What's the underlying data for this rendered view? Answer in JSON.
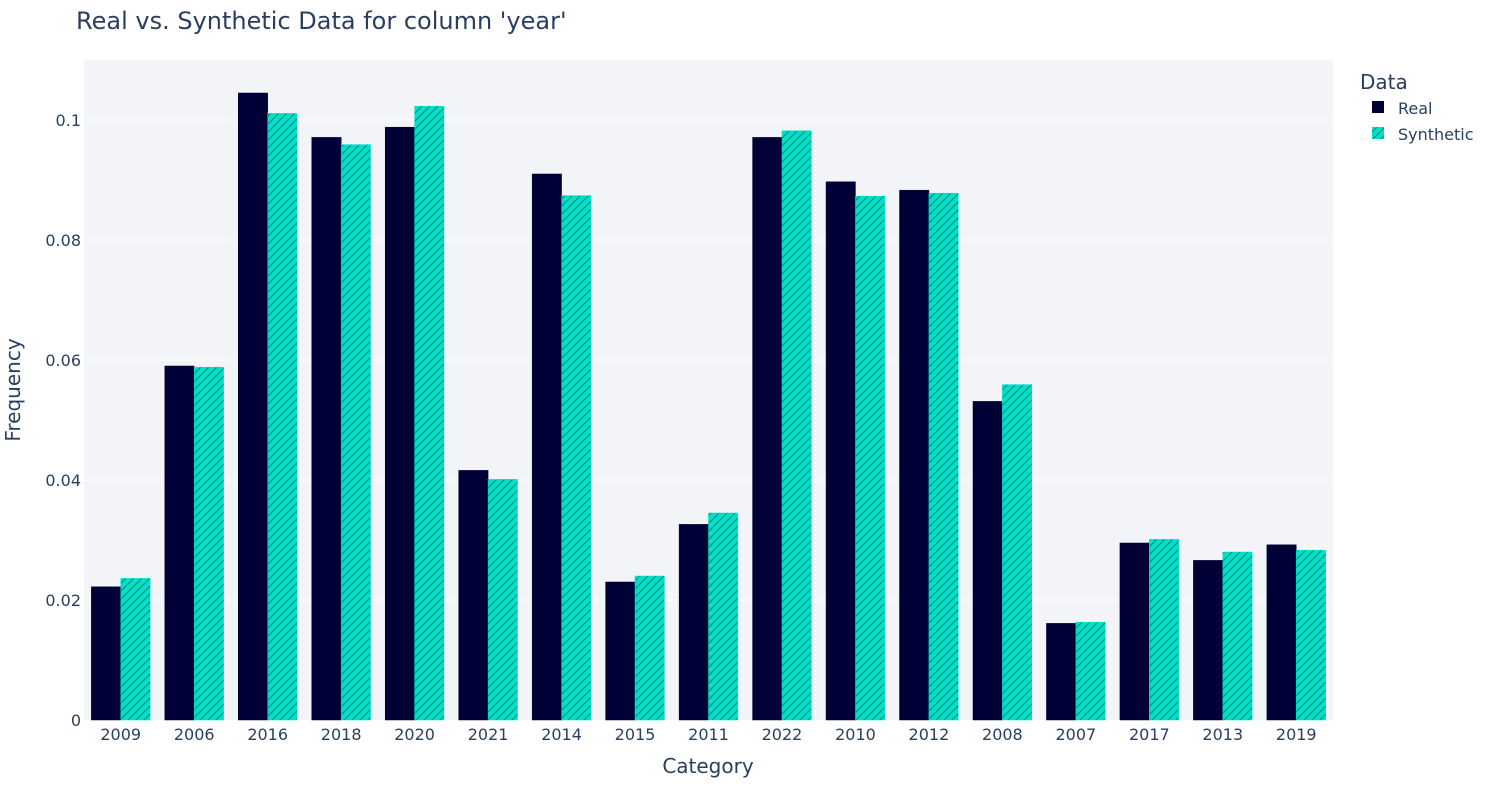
{
  "chart_data": {
    "type": "bar",
    "title": "Real vs. Synthetic Data for column 'year'",
    "xlabel": "Category",
    "ylabel": "Frequency",
    "ylim": [
      0,
      0.11
    ],
    "yticks": [
      0,
      0.02,
      0.04,
      0.06,
      0.08,
      0.1
    ],
    "ytick_labels": [
      "0",
      "0.02",
      "0.04",
      "0.06",
      "0.08",
      "0.1"
    ],
    "grid": true,
    "legend": {
      "title": "Data",
      "placement": "top-right"
    },
    "categories": [
      "2009",
      "2006",
      "2016",
      "2018",
      "2020",
      "2021",
      "2014",
      "2015",
      "2011",
      "2022",
      "2010",
      "2012",
      "2008",
      "2007",
      "2017",
      "2013",
      "2019"
    ],
    "series": [
      {
        "name": "Real",
        "color": "#000036",
        "pattern": "solid",
        "values": [
          0.0222,
          0.059,
          0.1045,
          0.0971,
          0.0988,
          0.0416,
          0.091,
          0.023,
          0.0326,
          0.0971,
          0.0897,
          0.0883,
          0.0531,
          0.0161,
          0.0295,
          0.0266,
          0.0292
        ]
      },
      {
        "name": "Synthetic",
        "color": "#01E0C9",
        "pattern": "hatched",
        "values": [
          0.0236,
          0.0588,
          0.1011,
          0.0959,
          0.1023,
          0.0401,
          0.0874,
          0.024,
          0.0345,
          0.0982,
          0.0873,
          0.0878,
          0.0559,
          0.0163,
          0.0301,
          0.028,
          0.0283
        ]
      }
    ]
  }
}
